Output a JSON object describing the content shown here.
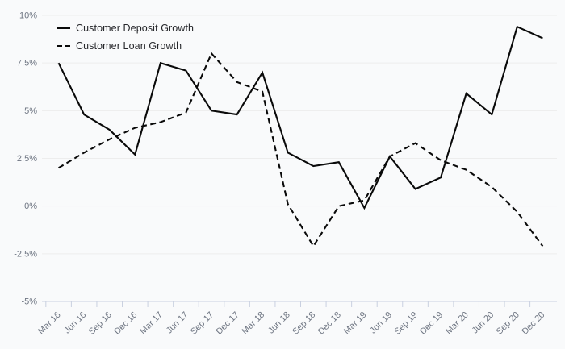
{
  "colors": {
    "background": "#f9fafb",
    "gridline": "#ededed",
    "axis": "#c9d0e0",
    "tick_label": "#6e7582",
    "line": "#0a0a0a",
    "legend_text": "#26272b"
  },
  "chart_data": {
    "type": "line",
    "title": "",
    "xlabel": "",
    "ylabel": "",
    "grid": true,
    "legend_position": "top-left-inside",
    "ylim": [
      -5,
      10
    ],
    "yticks": {
      "values": [
        10,
        7.5,
        5,
        2.5,
        0,
        -2.5,
        -5
      ],
      "labels": [
        "10%",
        "7.5%",
        "5%",
        "2.5%",
        "0%",
        "-2.5%",
        "-5%"
      ]
    },
    "categories": [
      "Mar 16",
      "Jun 16",
      "Sep 16",
      "Dec 16",
      "Mar 17",
      "Jun 17",
      "Sep 17",
      "Dec 17",
      "Mar 18",
      "Jun 18",
      "Sep 18",
      "Dec 18",
      "Mar 19",
      "Jun 19",
      "Sep 19",
      "Dec 19",
      "Mar 20",
      "Jun 20",
      "Sep 20",
      "Dec 20"
    ],
    "series": [
      {
        "name": "Customer Deposit Growth",
        "style": "solid",
        "values": [
          7.5,
          4.8,
          4.0,
          2.7,
          7.5,
          7.1,
          5.0,
          4.8,
          7.0,
          2.8,
          2.1,
          2.3,
          -0.1,
          2.6,
          0.9,
          1.5,
          5.9,
          4.8,
          9.4,
          8.8
        ]
      },
      {
        "name": "Customer Loan Growth",
        "style": "dashed",
        "values": [
          2.0,
          2.8,
          3.5,
          4.1,
          4.4,
          4.9,
          8.0,
          6.5,
          6.0,
          0.1,
          -2.1,
          0.0,
          0.3,
          2.6,
          3.3,
          2.4,
          1.9,
          1.0,
          -0.3,
          -2.1
        ]
      }
    ]
  }
}
